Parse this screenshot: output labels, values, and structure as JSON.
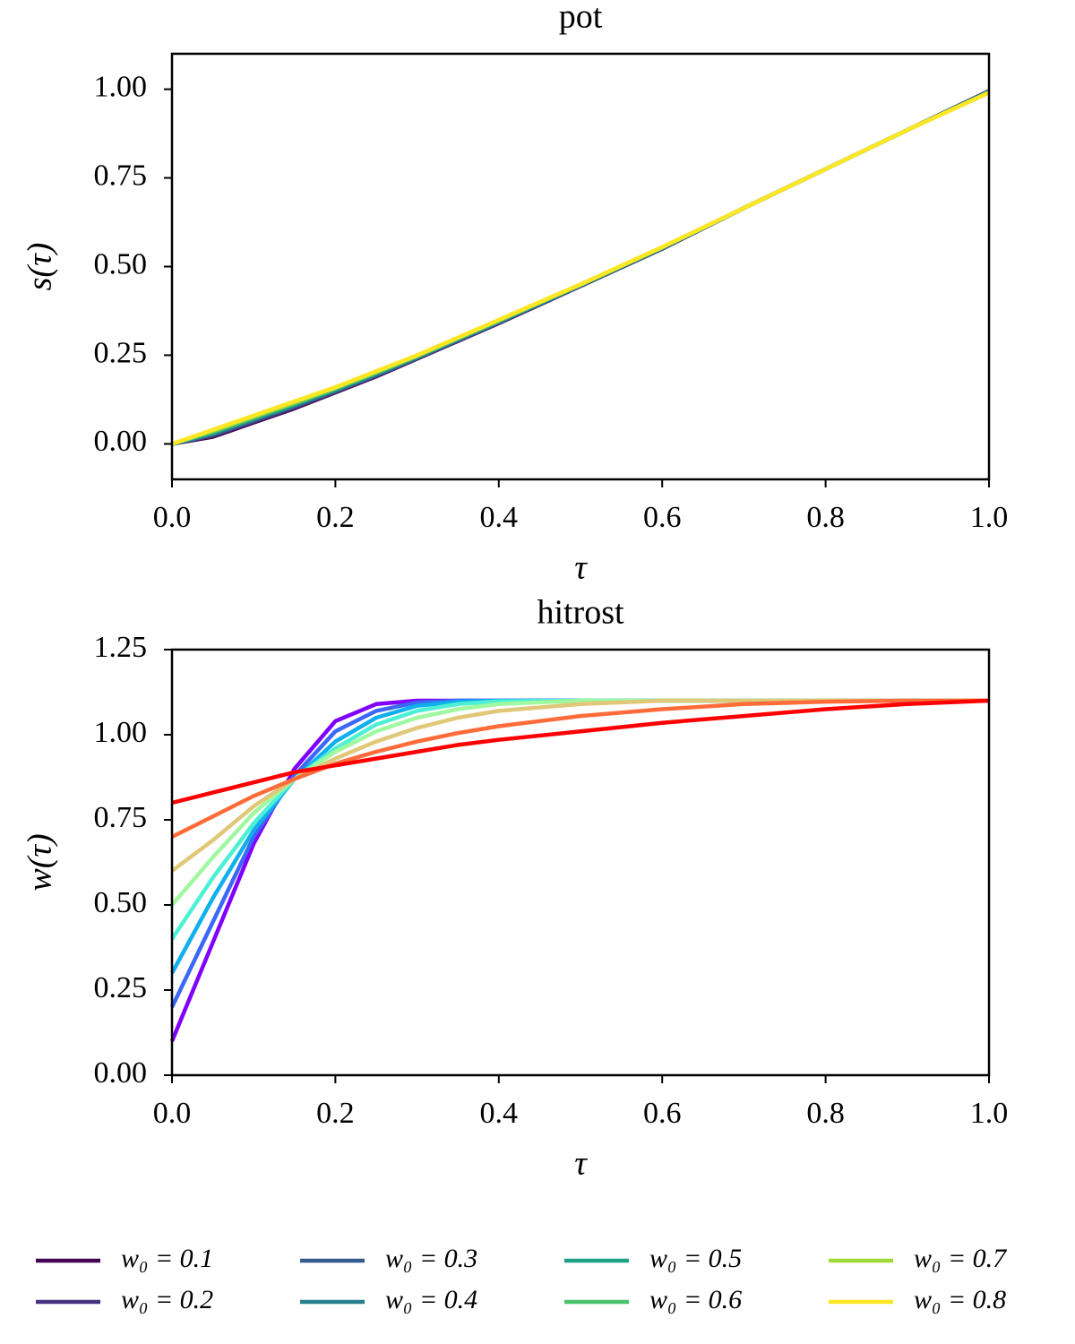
{
  "chart_data": [
    {
      "type": "line",
      "title": "pot",
      "xlabel": "τ",
      "ylabel": "s(τ)",
      "x": [
        0,
        0.05,
        0.1,
        0.15,
        0.2,
        0.25,
        0.3,
        0.35,
        0.4,
        0.5,
        0.6,
        0.7,
        0.8,
        0.9,
        1.0
      ],
      "xlim": [
        0,
        1
      ],
      "ylim": [
        -0.1,
        1.1
      ],
      "xticks": [
        {
          "value": 0,
          "label": "0.0"
        },
        0.2,
        0.4,
        0.6,
        0.8,
        {
          "value": 1,
          "label": "1.0"
        }
      ],
      "yticks": [
        {
          "value": 0,
          "label": "0.00"
        },
        0.25,
        {
          "value": 0.5,
          "label": "0.50"
        },
        0.75,
        {
          "value": 1,
          "label": "1.00"
        }
      ],
      "legend": "below",
      "series": [
        {
          "name": "w₀ = 0.1",
          "color": "#440154",
          "values": [
            0,
            0.02,
            0.06,
            0.1,
            0.145,
            0.19,
            0.24,
            0.29,
            0.34,
            0.445,
            0.55,
            0.665,
            0.775,
            0.885,
            0.995
          ]
        },
        {
          "name": "w₀ = 0.2",
          "color": "#46327e",
          "values": [
            0,
            0.023,
            0.063,
            0.103,
            0.147,
            0.192,
            0.241,
            0.291,
            0.341,
            0.446,
            0.551,
            0.665,
            0.775,
            0.885,
            0.994
          ]
        },
        {
          "name": "w₀ = 0.3",
          "color": "#365c8d",
          "values": [
            0,
            0.026,
            0.066,
            0.106,
            0.149,
            0.194,
            0.243,
            0.293,
            0.343,
            0.446,
            0.551,
            0.665,
            0.775,
            0.885,
            0.994
          ]
        },
        {
          "name": "w₀ = 0.4",
          "color": "#277f8e",
          "values": [
            0,
            0.029,
            0.069,
            0.109,
            0.151,
            0.196,
            0.244,
            0.294,
            0.344,
            0.447,
            0.552,
            0.665,
            0.775,
            0.885,
            0.993
          ]
        },
        {
          "name": "w₀ = 0.5",
          "color": "#1fa187",
          "values": [
            0,
            0.031,
            0.071,
            0.111,
            0.154,
            0.199,
            0.246,
            0.296,
            0.346,
            0.448,
            0.553,
            0.665,
            0.775,
            0.885,
            0.992
          ]
        },
        {
          "name": "w₀ = 0.6",
          "color": "#4ac16d",
          "values": [
            0,
            0.034,
            0.074,
            0.114,
            0.156,
            0.201,
            0.247,
            0.297,
            0.347,
            0.449,
            0.554,
            0.665,
            0.775,
            0.885,
            0.991
          ]
        },
        {
          "name": "w₀ = 0.7",
          "color": "#a0da39",
          "values": [
            0,
            0.037,
            0.077,
            0.117,
            0.158,
            0.203,
            0.249,
            0.299,
            0.349,
            0.449,
            0.554,
            0.665,
            0.775,
            0.885,
            0.991
          ]
        },
        {
          "name": "w₀ = 0.8",
          "color": "#fde725",
          "values": [
            0,
            0.04,
            0.08,
            0.12,
            0.16,
            0.205,
            0.25,
            0.3,
            0.35,
            0.45,
            0.555,
            0.665,
            0.775,
            0.885,
            0.99
          ]
        }
      ]
    },
    {
      "type": "line",
      "title": "hitrost",
      "xlabel": "τ",
      "ylabel": "w(τ)",
      "x": [
        0,
        0.05,
        0.1,
        0.15,
        0.2,
        0.25,
        0.3,
        0.35,
        0.4,
        0.5,
        0.6,
        0.7,
        0.8,
        0.9,
        1.0
      ],
      "xlim": [
        0,
        1
      ],
      "ylim": [
        0,
        1.25
      ],
      "xticks": [
        {
          "value": 0,
          "label": "0.0"
        },
        0.2,
        0.4,
        0.6,
        0.8,
        {
          "value": 1,
          "label": "1.0"
        }
      ],
      "yticks": [
        {
          "value": 0,
          "label": "0.00"
        },
        0.25,
        {
          "value": 0.5,
          "label": "0.50"
        },
        0.75,
        {
          "value": 1,
          "label": "1.00"
        },
        1.25
      ],
      "series": [
        {
          "color": "#8000ff",
          "values": [
            0.1,
            0.39,
            0.68,
            0.9,
            1.04,
            1.09,
            1.1,
            1.1,
            1.1,
            1.1,
            1.1,
            1.1,
            1.1,
            1.1,
            1.1
          ]
        },
        {
          "color": "#3c68f8",
          "values": [
            0.2,
            0.45,
            0.7,
            0.88,
            1.01,
            1.07,
            1.095,
            1.1,
            1.1,
            1.1,
            1.1,
            1.1,
            1.1,
            1.1,
            1.1
          ]
        },
        {
          "color": "#10b0ee",
          "values": [
            0.3,
            0.52,
            0.72,
            0.87,
            0.98,
            1.05,
            1.085,
            1.097,
            1.1,
            1.1,
            1.1,
            1.1,
            1.1,
            1.1,
            1.1
          ]
        },
        {
          "color": "#4ef0d4",
          "values": [
            0.4,
            0.58,
            0.74,
            0.87,
            0.96,
            1.03,
            1.07,
            1.09,
            1.098,
            1.1,
            1.1,
            1.1,
            1.1,
            1.1,
            1.1
          ]
        },
        {
          "color": "#a0f8a0",
          "values": [
            0.5,
            0.64,
            0.77,
            0.87,
            0.95,
            1.01,
            1.05,
            1.075,
            1.09,
            1.1,
            1.1,
            1.1,
            1.1,
            1.1,
            1.1
          ]
        },
        {
          "color": "#e0c878",
          "values": [
            0.6,
            0.69,
            0.79,
            0.87,
            0.93,
            0.98,
            1.02,
            1.05,
            1.07,
            1.09,
            1.1,
            1.1,
            1.1,
            1.1,
            1.1
          ]
        },
        {
          "color": "#ff6c3a",
          "values": [
            0.7,
            0.76,
            0.82,
            0.87,
            0.915,
            0.95,
            0.98,
            1.005,
            1.025,
            1.055,
            1.075,
            1.09,
            1.097,
            1.1,
            1.1
          ]
        },
        {
          "color": "#ff0000",
          "values": [
            0.8,
            0.83,
            0.86,
            0.89,
            0.91,
            0.93,
            0.95,
            0.97,
            0.985,
            1.01,
            1.035,
            1.055,
            1.075,
            1.09,
            1.1
          ]
        }
      ]
    }
  ]
}
